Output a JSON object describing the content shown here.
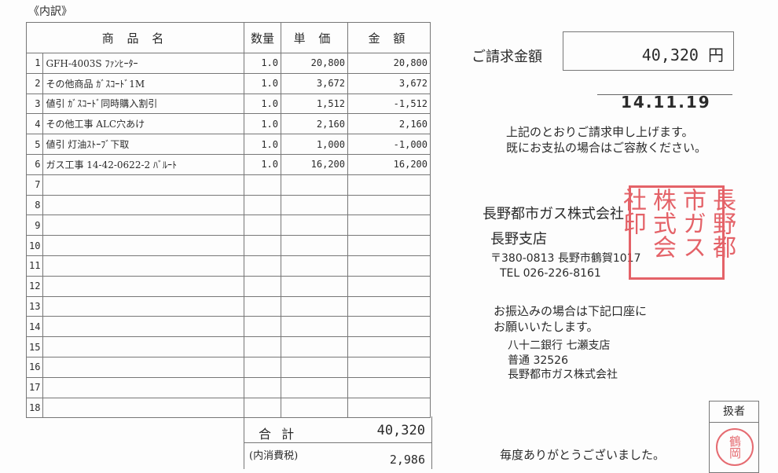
{
  "section_title": "《内訳》",
  "headers": [
    "商 品 名",
    "数量",
    "単 価",
    "金 額"
  ],
  "rows": [
    {
      "no": "1",
      "name": "GFH-4003S ﾌｧﾝﾋｰﾀｰ",
      "qty": "1.0",
      "price": "20,800",
      "amount": "20,800"
    },
    {
      "no": "2",
      "name": "その他商品 ｶﾞｽｺｰﾄﾞ1M",
      "qty": "1.0",
      "price": "3,672",
      "amount": "3,672"
    },
    {
      "no": "3",
      "name": "値引 ｶﾞｽｺｰﾄﾞ同時購入割引",
      "qty": "1.0",
      "price": "1,512",
      "amount": "-1,512"
    },
    {
      "no": "4",
      "name": "その他工事 ALC穴あけ",
      "qty": "1.0",
      "price": "2,160",
      "amount": "2,160"
    },
    {
      "no": "5",
      "name": "値引 灯油ｽﾄｰﾌﾞ下取",
      "qty": "1.0",
      "price": "1,000",
      "amount": "-1,000"
    },
    {
      "no": "6",
      "name": "ガス工事 14-42-0622-2 ﾊﾞﾙｰﾄ",
      "qty": "1.0",
      "price": "16,200",
      "amount": "16,200"
    },
    {
      "no": "7"
    },
    {
      "no": "8"
    },
    {
      "no": "9"
    },
    {
      "no": "10"
    },
    {
      "no": "11"
    },
    {
      "no": "12"
    },
    {
      "no": "13"
    },
    {
      "no": "14"
    },
    {
      "no": "15"
    },
    {
      "no": "16"
    },
    {
      "no": "17"
    },
    {
      "no": "18"
    }
  ],
  "total": {
    "label": "合 計",
    "value": "40,320",
    "tax_label": "(内消費税)",
    "tax_value": "2,986"
  },
  "invoice": {
    "label": "ご請求金額",
    "amount": "40,320 円",
    "date": "14.11.19"
  },
  "message": [
    "上記のとおりご請求申し上げます。",
    "既にお支払の場合はご容赦ください。"
  ],
  "company": {
    "name": "長野都市ガス株式会社",
    "branch": "長野支店",
    "address": "〒380-0813 長野市鶴賀1017",
    "tel": "TEL 026-226-8161",
    "seal": "長野都市ガス株式会社印"
  },
  "transfer": {
    "text": [
      "お振込みの場合は下記口座に",
      "お願いいたします。"
    ],
    "bank": "八十二銀行 七瀬支店",
    "account": "普通 32526",
    "holder": "長野都市ガス株式会社"
  },
  "handler_label": "扱者",
  "handler_seal": "鶴岡",
  "closing": "毎度ありがとうございました。",
  "colors": {
    "seal": "#e0474f",
    "ink": "#2a2a2a"
  }
}
